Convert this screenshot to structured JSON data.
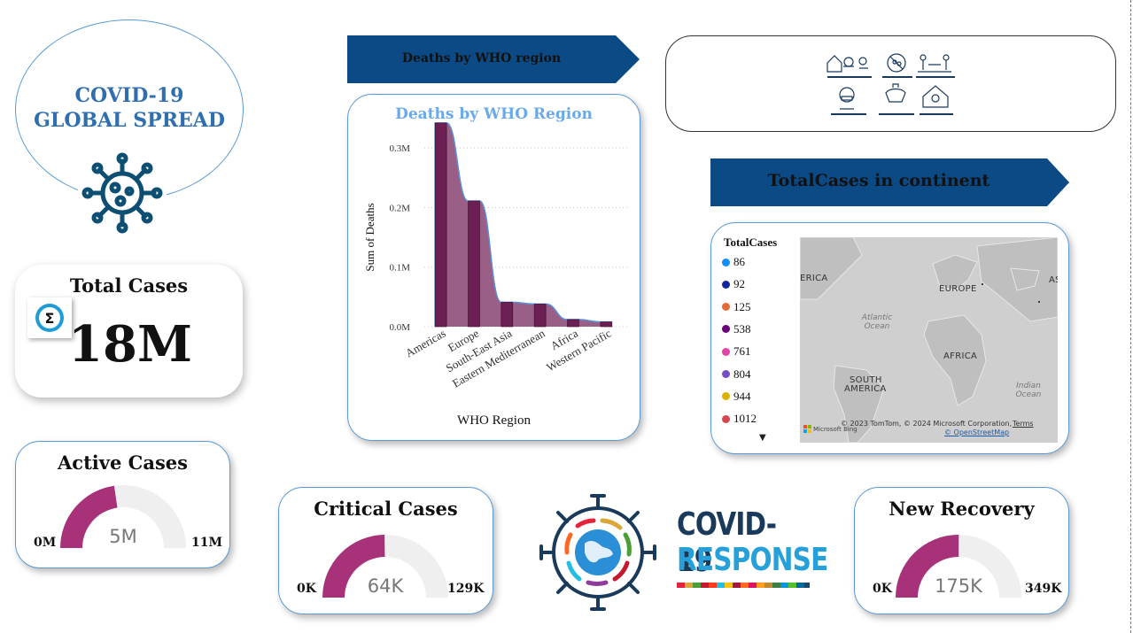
{
  "title": {
    "line1": "COVID-19",
    "line2": "GLOBAL SPREAD",
    "icon": "virus-icon"
  },
  "total_cases": {
    "title": "Total Cases",
    "value": "18M",
    "icon": "sigma-icon"
  },
  "active_cases": {
    "title": "Active Cases",
    "value": "5M",
    "min": "0M",
    "max": "11M",
    "fill_fraction": 0.4545,
    "color": "#a7327a"
  },
  "critical_cases": {
    "title": "Critical Cases",
    "value": "64K",
    "min": "0K",
    "max": "129K",
    "fill_fraction": 0.4961,
    "color": "#a7327a"
  },
  "new_recovery": {
    "title": "New Recovery",
    "value": "175K",
    "min": "0K",
    "max": "349K",
    "fill_fraction": 0.5014,
    "color": "#a7327a"
  },
  "deaths_banner": {
    "label": "Deaths by WHO region",
    "color": "#0b4a84"
  },
  "continent_banner": {
    "label": "TotalCases in continent",
    "color": "#0b4a84"
  },
  "chart_data": {
    "type": "bar",
    "title": "Deaths by WHO Region",
    "xlabel": "WHO Region",
    "ylabel": "Sum of Deaths",
    "categories": [
      "Americas",
      "Europe",
      "South-East Asia",
      "Eastern Mediterranean",
      "Africa",
      "Western Pacific"
    ],
    "values": [
      342000,
      211000,
      41000,
      38000,
      12000,
      8000
    ],
    "ylim": [
      0,
      0.33
    ],
    "yticks": [
      "0.0M",
      "0.1M",
      "0.2M",
      "0.3M"
    ],
    "grid": true,
    "bar_color": "#6b1f53",
    "area_color": "#9a5f87",
    "line_color": "#5b8fd6"
  },
  "guidelines_panel": {
    "icons": [
      "stay-home-icon",
      "no-gathering-icon",
      "physical-distance-icon",
      "face-covering-icon",
      "hygiene-icon",
      "stay-home-if-unwell-icon"
    ]
  },
  "map": {
    "legend_title": "TotalCases",
    "legend": [
      {
        "label": "86",
        "color": "#118dff"
      },
      {
        "label": "92",
        "color": "#12239e"
      },
      {
        "label": "125",
        "color": "#e66c37"
      },
      {
        "label": "538",
        "color": "#6b007b"
      },
      {
        "label": "761",
        "color": "#e044a7"
      },
      {
        "label": "804",
        "color": "#744ec2"
      },
      {
        "label": "944",
        "color": "#d9b300"
      },
      {
        "label": "1012",
        "color": "#d64550"
      }
    ],
    "labels": {
      "america": "ERICA",
      "europe": "EUROPE",
      "asia": "AS",
      "africa": "AFRICA",
      "south_america_1": "SOUTH",
      "south_america_2": "AMERICA"
    },
    "oceans": {
      "atlantic_1": "Atlantic",
      "atlantic_2": "Ocean",
      "indian_1": "Indian",
      "indian_2": "Ocean"
    },
    "attribution": "© 2023 TomTom, © 2024 Microsoft Corporation,",
    "terms": "Terms",
    "osm": "© OpenStreetMap",
    "bing": "Microsoft Bing"
  },
  "response_logo": {
    "line1": "COVID-19",
    "line2": "RESPONSE"
  }
}
